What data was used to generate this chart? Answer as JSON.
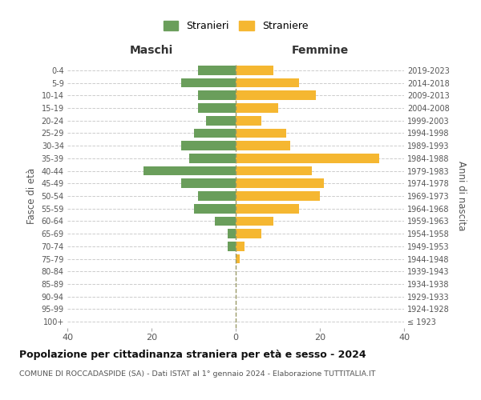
{
  "age_groups": [
    "100+",
    "95-99",
    "90-94",
    "85-89",
    "80-84",
    "75-79",
    "70-74",
    "65-69",
    "60-64",
    "55-59",
    "50-54",
    "45-49",
    "40-44",
    "35-39",
    "30-34",
    "25-29",
    "20-24",
    "15-19",
    "10-14",
    "5-9",
    "0-4"
  ],
  "birth_years": [
    "≤ 1923",
    "1924-1928",
    "1929-1933",
    "1934-1938",
    "1939-1943",
    "1944-1948",
    "1949-1953",
    "1954-1958",
    "1959-1963",
    "1964-1968",
    "1969-1973",
    "1974-1978",
    "1979-1983",
    "1984-1988",
    "1989-1993",
    "1994-1998",
    "1999-2003",
    "2004-2008",
    "2009-2013",
    "2014-2018",
    "2019-2023"
  ],
  "maschi": [
    0,
    0,
    0,
    0,
    0,
    0,
    2,
    2,
    5,
    10,
    9,
    13,
    22,
    11,
    13,
    10,
    7,
    9,
    9,
    13,
    9
  ],
  "femmine": [
    0,
    0,
    0,
    0,
    0,
    1,
    2,
    6,
    9,
    15,
    20,
    21,
    18,
    34,
    13,
    12,
    6,
    10,
    19,
    15,
    9
  ],
  "color_maschi": "#6a9e5b",
  "color_femmine": "#f5b731",
  "title": "Popolazione per cittadinanza straniera per età e sesso - 2024",
  "subtitle": "COMUNE DI ROCCADASPIDE (SA) - Dati ISTAT al 1° gennaio 2024 - Elaborazione TUTTITALIA.IT",
  "xlabel_maschi": "Maschi",
  "xlabel_femmine": "Femmine",
  "ylabel_left": "Fasce di età",
  "ylabel_right": "Anni di nascita",
  "legend_maschi": "Stranieri",
  "legend_femmine": "Straniere",
  "xlim": 40,
  "background_color": "#ffffff",
  "grid_color": "#cccccc",
  "center_line_color": "#999966"
}
